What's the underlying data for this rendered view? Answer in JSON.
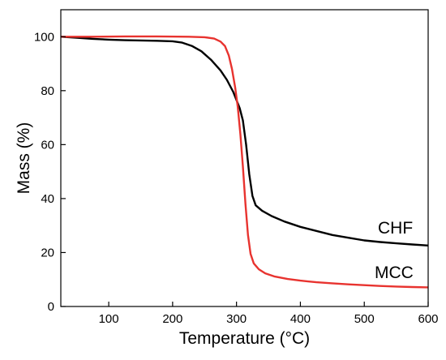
{
  "chart_data": {
    "type": "line",
    "title": "",
    "xlabel": "Temperature (°C)",
    "ylabel": "Mass (%)",
    "xlim": [
      25,
      600
    ],
    "ylim": [
      0,
      110
    ],
    "x_ticks": [
      100,
      200,
      300,
      400,
      500,
      600
    ],
    "y_ticks": [
      0,
      20,
      40,
      60,
      80,
      100
    ],
    "grid": false,
    "legend": "none",
    "series": [
      {
        "name": "CHF",
        "color": "#000000",
        "points": [
          [
            25,
            100
          ],
          [
            50,
            99.6
          ],
          [
            75,
            99.2
          ],
          [
            100,
            98.9
          ],
          [
            125,
            98.7
          ],
          [
            150,
            98.6
          ],
          [
            175,
            98.5
          ],
          [
            200,
            98.3
          ],
          [
            215,
            97.8
          ],
          [
            230,
            96.6
          ],
          [
            245,
            94.6
          ],
          [
            260,
            91.5
          ],
          [
            275,
            87.5
          ],
          [
            285,
            84.0
          ],
          [
            295,
            79.5
          ],
          [
            305,
            73.5
          ],
          [
            310,
            69.0
          ],
          [
            315,
            60.0
          ],
          [
            320,
            49.0
          ],
          [
            325,
            41.0
          ],
          [
            330,
            37.5
          ],
          [
            340,
            35.5
          ],
          [
            355,
            33.5
          ],
          [
            375,
            31.5
          ],
          [
            400,
            29.5
          ],
          [
            425,
            28.0
          ],
          [
            450,
            26.5
          ],
          [
            475,
            25.5
          ],
          [
            500,
            24.5
          ],
          [
            525,
            23.9
          ],
          [
            550,
            23.4
          ],
          [
            575,
            23.0
          ],
          [
            600,
            22.6
          ]
        ]
      },
      {
        "name": "MCC",
        "color": "#e8332f",
        "points": [
          [
            25,
            100
          ],
          [
            75,
            100
          ],
          [
            125,
            100.1
          ],
          [
            175,
            100.1
          ],
          [
            225,
            100.0
          ],
          [
            250,
            99.8
          ],
          [
            265,
            99.3
          ],
          [
            275,
            98.2
          ],
          [
            282,
            96.5
          ],
          [
            288,
            93.0
          ],
          [
            293,
            88.0
          ],
          [
            298,
            81.0
          ],
          [
            302,
            74.0
          ],
          [
            306,
            64.0
          ],
          [
            310,
            52.0
          ],
          [
            314,
            38.0
          ],
          [
            318,
            26.5
          ],
          [
            322,
            19.5
          ],
          [
            327,
            16.0
          ],
          [
            335,
            13.8
          ],
          [
            345,
            12.3
          ],
          [
            360,
            11.1
          ],
          [
            380,
            10.2
          ],
          [
            400,
            9.6
          ],
          [
            425,
            9.0
          ],
          [
            450,
            8.6
          ],
          [
            475,
            8.2
          ],
          [
            500,
            7.9
          ],
          [
            525,
            7.6
          ],
          [
            550,
            7.4
          ],
          [
            575,
            7.2
          ],
          [
            600,
            7.1
          ]
        ]
      }
    ]
  }
}
